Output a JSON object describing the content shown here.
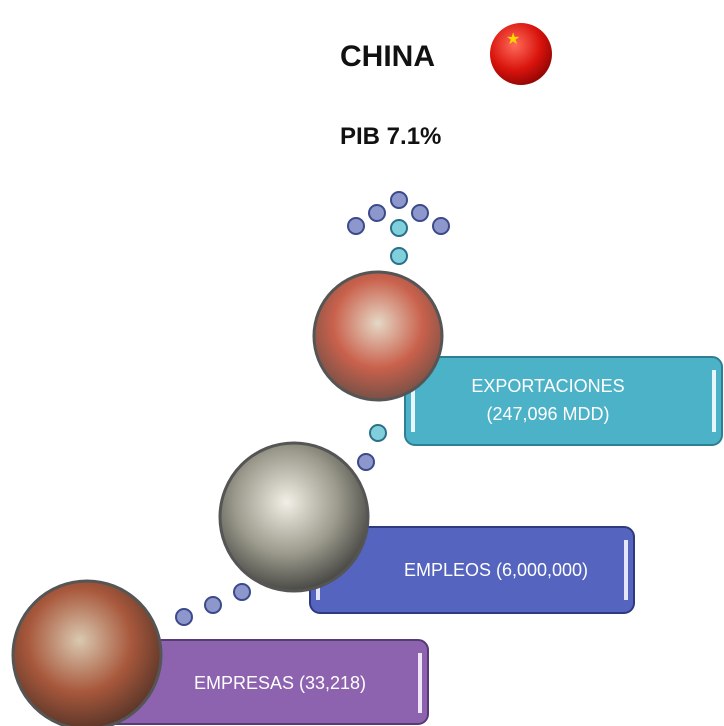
{
  "header": {
    "title": "CHINA",
    "subtitle": "PIB 7.1%"
  },
  "steps": [
    {
      "lines": [
        "EMPRESAS  (33,218)"
      ]
    },
    {
      "lines": [
        "EMPLEOS  (6,000,000)"
      ]
    },
    {
      "lines": [
        "EXPORTACIONES",
        "(247,096 MDD)"
      ]
    }
  ]
}
